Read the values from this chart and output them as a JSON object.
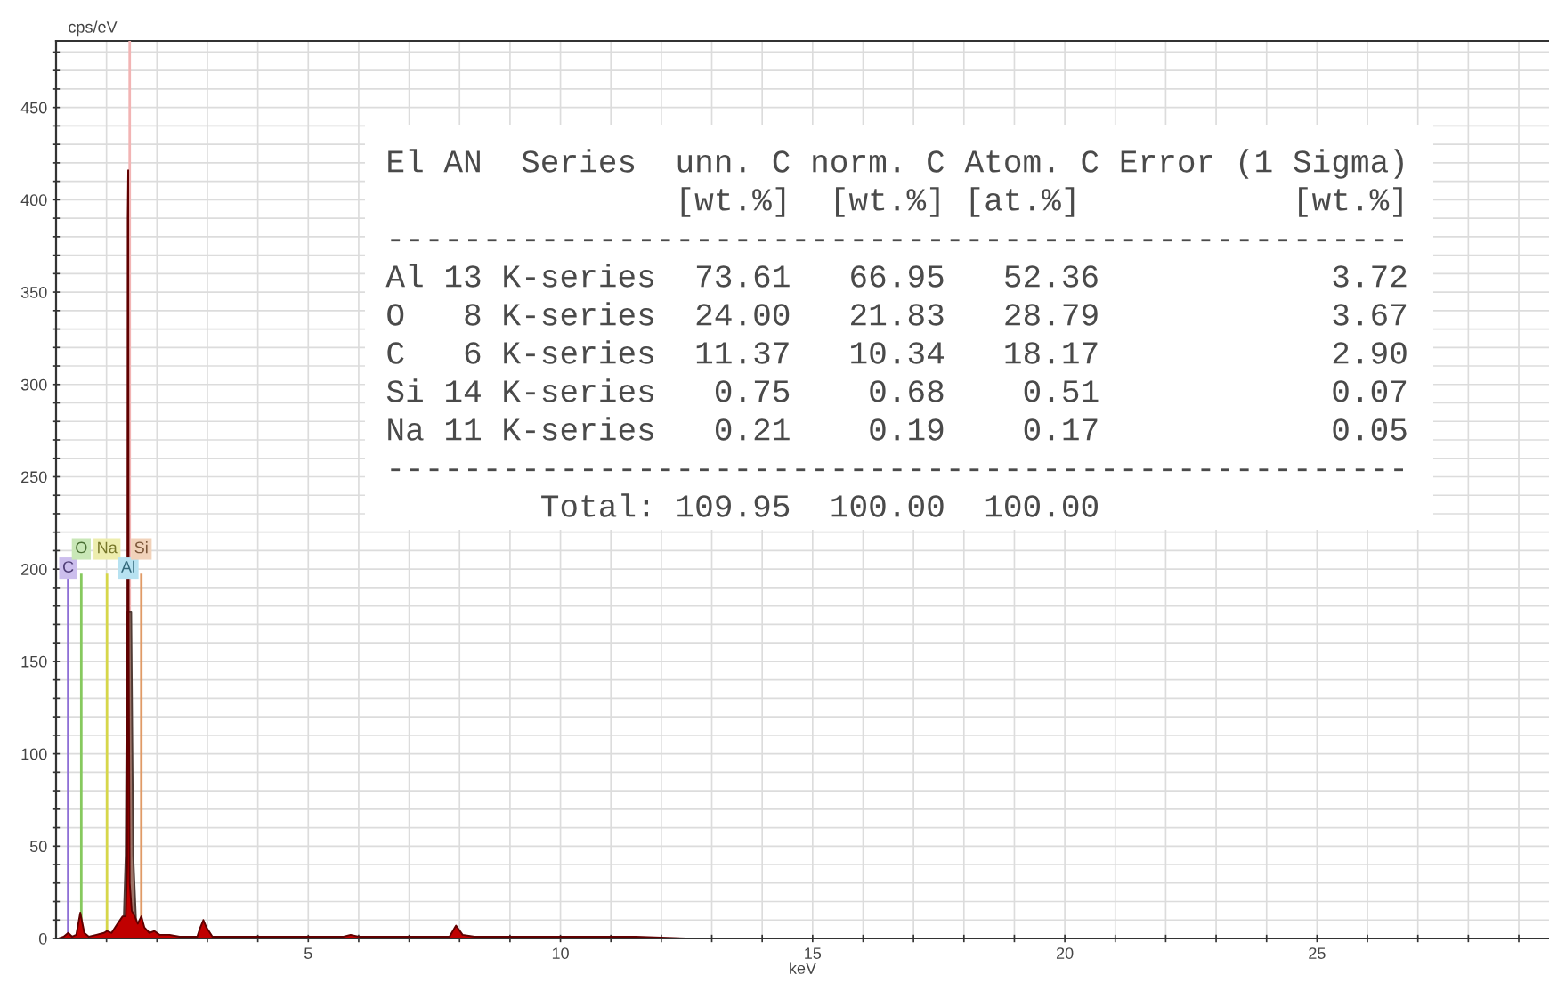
{
  "chart_data": {
    "type": "area",
    "xlabel": "keV",
    "ylabel": "cps/eV",
    "xlim": [
      0,
      29.6
    ],
    "ylim": [
      0,
      486
    ],
    "xticks": [
      {
        "value": 1,
        "label": null
      },
      {
        "value": 2,
        "label": null
      },
      {
        "value": 3,
        "label": null
      },
      {
        "value": 4,
        "label": null
      },
      5,
      {
        "value": 6,
        "label": null
      },
      {
        "value": 7,
        "label": null
      },
      {
        "value": 8,
        "label": null
      },
      {
        "value": 9,
        "label": null
      },
      10,
      {
        "value": 11,
        "label": null
      },
      {
        "value": 12,
        "label": null
      },
      {
        "value": 13,
        "label": null
      },
      {
        "value": 14,
        "label": null
      },
      15,
      {
        "value": 16,
        "label": null
      },
      {
        "value": 17,
        "label": null
      },
      {
        "value": 18,
        "label": null
      },
      {
        "value": 19,
        "label": null
      },
      20,
      {
        "value": 21,
        "label": null
      },
      {
        "value": 22,
        "label": null
      },
      {
        "value": 23,
        "label": null
      },
      {
        "value": 24,
        "label": null
      },
      25,
      {
        "value": 26,
        "label": null
      },
      {
        "value": 27,
        "label": null
      },
      {
        "value": 28,
        "label": null
      },
      {
        "value": 29,
        "label": null
      }
    ],
    "yticks": [
      0,
      {
        "value": 10,
        "label": null
      },
      {
        "value": 20,
        "label": null
      },
      {
        "value": 30,
        "label": null
      },
      {
        "value": 40,
        "label": null
      },
      50,
      {
        "value": 60,
        "label": null
      },
      {
        "value": 70,
        "label": null
      },
      {
        "value": 80,
        "label": null
      },
      {
        "value": 90,
        "label": null
      },
      100,
      {
        "value": 110,
        "label": null
      },
      {
        "value": 120,
        "label": null
      },
      {
        "value": 130,
        "label": null
      },
      {
        "value": 140,
        "label": null
      },
      150,
      {
        "value": 160,
        "label": null
      },
      {
        "value": 170,
        "label": null
      },
      {
        "value": 180,
        "label": null
      },
      {
        "value": 190,
        "label": null
      },
      200,
      {
        "value": 210,
        "label": null
      },
      {
        "value": 220,
        "label": null
      },
      {
        "value": 230,
        "label": null
      },
      {
        "value": 240,
        "label": null
      },
      250,
      {
        "value": 260,
        "label": null
      },
      {
        "value": 270,
        "label": null
      },
      {
        "value": 280,
        "label": null
      },
      {
        "value": 290,
        "label": null
      },
      300,
      {
        "value": 310,
        "label": null
      },
      {
        "value": 320,
        "label": null
      },
      {
        "value": 330,
        "label": null
      },
      {
        "value": 340,
        "label": null
      },
      350,
      {
        "value": 360,
        "label": null
      },
      {
        "value": 370,
        "label": null
      },
      {
        "value": 380,
        "label": null
      },
      {
        "value": 390,
        "label": null
      },
      400,
      {
        "value": 410,
        "label": null
      },
      {
        "value": 420,
        "label": null
      },
      {
        "value": 430,
        "label": null
      },
      {
        "value": 440,
        "label": null
      },
      450,
      {
        "value": 460,
        "label": null
      },
      {
        "value": 470,
        "label": null
      },
      {
        "value": 480,
        "label": null
      }
    ],
    "grid": true,
    "series": [
      {
        "color": "#9c7468",
        "x": [
          1.33,
          1.38,
          1.41,
          1.49,
          1.53,
          1.6
        ],
        "values": [
          0,
          45,
          177,
          177,
          45,
          0
        ]
      },
      {
        "color": "#c00000",
        "x": [
          0.05,
          0.15,
          0.24,
          0.32,
          0.4,
          0.48,
          0.56,
          0.65,
          0.8,
          0.95,
          1.01,
          1.1,
          1.22,
          1.32,
          1.38,
          1.41,
          1.42,
          1.43,
          1.44,
          1.46,
          1.5,
          1.56,
          1.62,
          1.69,
          1.75,
          1.85,
          1.95,
          2.05,
          2.25,
          2.45,
          2.8,
          2.86,
          2.92,
          2.98,
          3.1,
          5.7,
          5.84,
          6.0,
          7.8,
          7.93,
          8.06,
          8.3,
          11.5,
          12.5,
          29.6
        ],
        "values": [
          0,
          1,
          3,
          1,
          2,
          14,
          3,
          1,
          2,
          3,
          4,
          3,
          8,
          12,
          12,
          40,
          390,
          416,
          150,
          30,
          15,
          12,
          8,
          12,
          6,
          3,
          4,
          2,
          2,
          1,
          1,
          6,
          10,
          6,
          1,
          1,
          2,
          1,
          1,
          7,
          2,
          1,
          1,
          0,
          0
        ]
      }
    ],
    "ref_lines": [
      {
        "axis": "x",
        "value": 1.46,
        "color": "#f2b4b4"
      },
      {
        "axis": "x",
        "value": 0.24,
        "label": "C",
        "color": "#8e6fd6"
      },
      {
        "axis": "x",
        "value": 0.5,
        "label": "O",
        "color": "#86c95e"
      },
      {
        "axis": "x",
        "value": 1.01,
        "label": "Na",
        "color": "#d6d64a"
      },
      {
        "axis": "x",
        "value": 1.43,
        "label": "Al",
        "color": "#5fbfe0"
      },
      {
        "axis": "x",
        "value": 1.69,
        "label": "Si",
        "color": "#e09a66"
      }
    ],
    "annotations": [
      "El AN  Series  unn. C norm. C Atom. C Error (1 Sigma)",
      "               [wt.%]  [wt.%] [at.%]           [wt.%]",
      "-----------------------------------------------------",
      "Al 13 K-series  73.61   66.95   52.36            3.72",
      "O   8 K-series  24.00   21.83   28.79            3.67",
      "C   6 K-series  11.37   10.34   18.17            2.90",
      "Si 14 K-series   0.75    0.68    0.51            0.07",
      "Na 11 K-series   0.21    0.19    0.17            0.05",
      "-----------------------------------------------------",
      "        Total: 109.95  100.00  100.00"
    ]
  }
}
